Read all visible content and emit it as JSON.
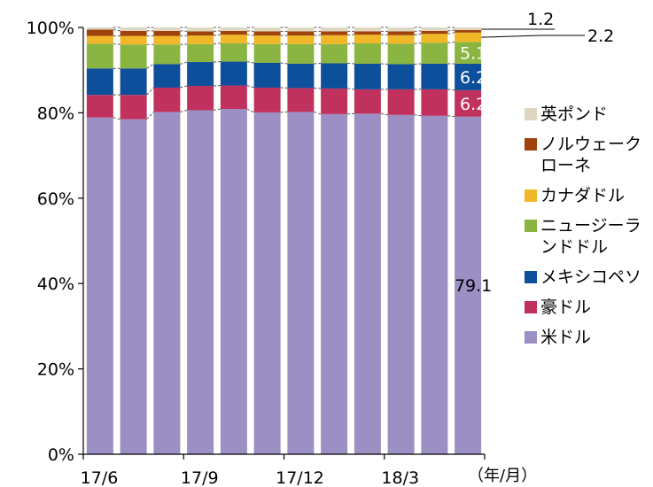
{
  "chart_data": {
    "type": "bar",
    "stacked": true,
    "percent_stacked": true,
    "categories": [
      "17/6",
      "",
      "",
      "17/9",
      "",
      "",
      "17/12",
      "",
      "",
      "18/3",
      "",
      ""
    ],
    "x_tick_labels": [
      "17/6",
      "17/9",
      "17/12",
      "18/3"
    ],
    "x_unit_label": "（年/月）",
    "ylim": [
      0,
      100
    ],
    "y_ticks": [
      "0%",
      "20%",
      "40%",
      "60%",
      "80%",
      "100%"
    ],
    "series": [
      {
        "name": "米ドル",
        "color": "#9b8fc4",
        "values": [
          78.9,
          78.5,
          80.2,
          80.6,
          80.9,
          80.1,
          80.2,
          79.7,
          79.8,
          79.5,
          79.3,
          79.1
        ]
      },
      {
        "name": "豪ドル",
        "color": "#c0315e",
        "values": [
          5.3,
          5.7,
          5.7,
          5.7,
          5.5,
          5.8,
          5.6,
          6.0,
          5.7,
          6.0,
          6.2,
          6.2
        ]
      },
      {
        "name": "メキシコペソ",
        "color": "#0e4f9c",
        "values": [
          6.2,
          6.2,
          5.5,
          5.6,
          5.6,
          5.8,
          5.7,
          5.9,
          6.0,
          5.9,
          6.0,
          6.2
        ]
      },
      {
        "name": "ニュージーランドドル",
        "color": "#8bb543",
        "values": [
          5.8,
          5.6,
          4.6,
          4.2,
          4.3,
          4.4,
          4.6,
          4.5,
          4.8,
          4.8,
          4.9,
          5.1
        ]
      },
      {
        "name": "カナダドル",
        "color": "#f0b728",
        "values": [
          1.8,
          2.0,
          2.0,
          2.0,
          2.0,
          2.0,
          2.0,
          2.1,
          2.0,
          2.0,
          2.1,
          2.2
        ]
      },
      {
        "name": "ノルウェークローネ",
        "color": "#a0420c",
        "values": [
          1.5,
          1.2,
          1.2,
          1.0,
          0.9,
          1.0,
          1.0,
          0.9,
          0.8,
          0.9,
          0.7,
          0.6
        ]
      },
      {
        "name": "英ポンド",
        "color": "#ddd7c2",
        "values": [
          0.5,
          0.8,
          0.8,
          0.9,
          0.8,
          0.9,
          0.9,
          0.9,
          0.9,
          0.9,
          0.8,
          0.6
        ]
      }
    ],
    "data_labels": {
      "usd_last": "79.1",
      "aud_last": "6.2",
      "mxn_last": "6.2",
      "nzd_last": "5.1",
      "cad_last": "2.2",
      "gbp_last": "1.2"
    },
    "legend_position": "right",
    "legend_order": [
      "英ポンド",
      "ノルウェークローネ",
      "カナダドル",
      "ニュージーランドドル",
      "メキシコペソ",
      "豪ドル",
      "米ドル"
    ],
    "grid": false
  }
}
